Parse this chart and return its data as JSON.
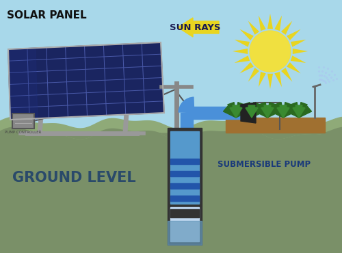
{
  "bg_sky_color": "#a8d8ea",
  "ground_surface_color": "#8faa78",
  "underground_color": "#7a9068",
  "title_solar": "SOLAR PANEL",
  "title_sun": "SUN RAYS",
  "title_ground": "GROUND LEVEL",
  "title_pump": "SUBMERSIBLE PUMP",
  "label_controller": "PUMP CONTROLLER",
  "panel_dark": "#1a2560",
  "panel_mid": "#1e2f80",
  "panel_grid": "#4a5aaa",
  "panel_frame": "#aaaaaa",
  "stand_color": "#999999",
  "sun_body": "#f0e040",
  "sun_ray": "#e8d520",
  "arrow_fill": "#e8d520",
  "arrow_text": "#1a1a50",
  "pipe_color": "#4a90d9",
  "casing_outer": "#333333",
  "casing_inner_top": "#5599cc",
  "pump_body_light": "#c0d8f0",
  "pump_ring": "#2255aa",
  "pump_motor": "#888888",
  "pump_motor_dark": "#333333",
  "pump_water": "#6699bb",
  "wire_color": "#555555",
  "pole_color": "#888888",
  "soil_color": "#a07030",
  "plant_dark": "#2a6a20",
  "plant_light": "#3a8a30",
  "ctrl_box": "#888888",
  "nozzle_color": "#222222",
  "ground_text_color": "#2a4a6a",
  "pump_text_color": "#1a3a7a",
  "solar_text_color": "#111111",
  "sun_text_color": "#1a1a50"
}
